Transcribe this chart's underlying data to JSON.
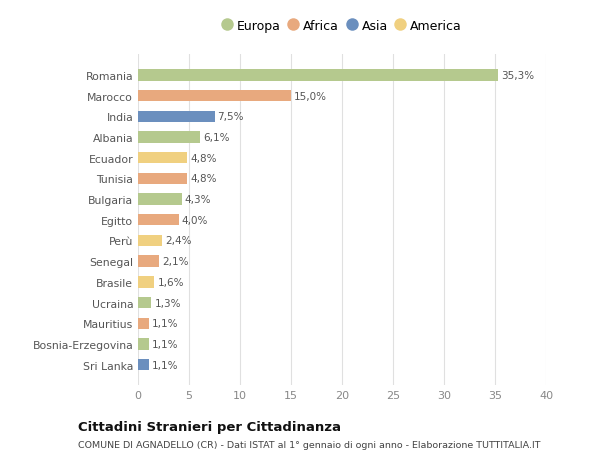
{
  "countries": [
    "Romania",
    "Marocco",
    "India",
    "Albania",
    "Ecuador",
    "Tunisia",
    "Bulgaria",
    "Egitto",
    "Perù",
    "Senegal",
    "Brasile",
    "Ucraina",
    "Mauritius",
    "Bosnia-Erzegovina",
    "Sri Lanka"
  ],
  "values": [
    35.3,
    15.0,
    7.5,
    6.1,
    4.8,
    4.8,
    4.3,
    4.0,
    2.4,
    2.1,
    1.6,
    1.3,
    1.1,
    1.1,
    1.1
  ],
  "labels": [
    "35,3%",
    "15,0%",
    "7,5%",
    "6,1%",
    "4,8%",
    "4,8%",
    "4,3%",
    "4,0%",
    "2,4%",
    "2,1%",
    "1,6%",
    "1,3%",
    "1,1%",
    "1,1%",
    "1,1%"
  ],
  "continent": [
    "Europa",
    "Africa",
    "Asia",
    "Europa",
    "America",
    "Africa",
    "Europa",
    "Africa",
    "America",
    "Africa",
    "America",
    "Europa",
    "Africa",
    "Europa",
    "Asia"
  ],
  "colors": {
    "Europa": "#b5c98e",
    "Africa": "#e8a97e",
    "Asia": "#6b8fbe",
    "America": "#f0d080"
  },
  "xlim": [
    0,
    40
  ],
  "xticks": [
    0,
    5,
    10,
    15,
    20,
    25,
    30,
    35,
    40
  ],
  "title": "Cittadini Stranieri per Cittadinanza",
  "subtitle": "COMUNE DI AGNADELLO (CR) - Dati ISTAT al 1° gennaio di ogni anno - Elaborazione TUTTITALIA.IT",
  "background_color": "#ffffff",
  "plot_background_color": "#ffffff",
  "grid_color": "#e0e0e0",
  "bar_height": 0.55
}
